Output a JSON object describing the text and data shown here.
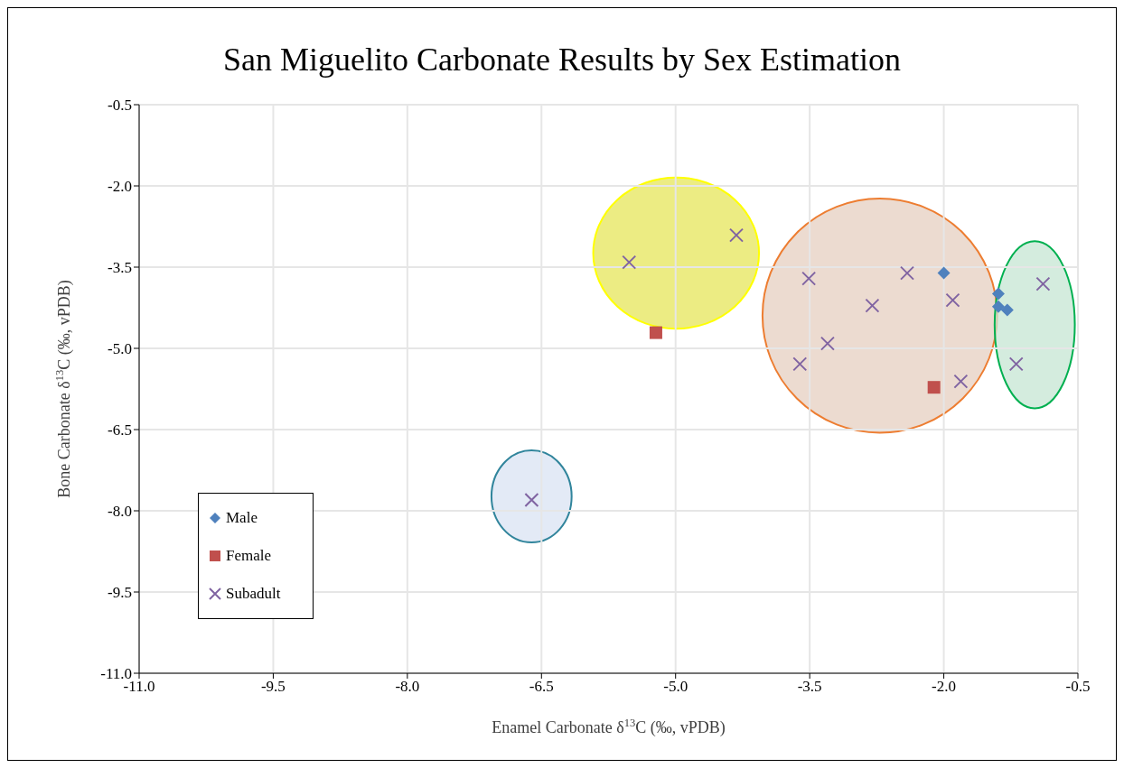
{
  "chart_data": {
    "type": "scatter",
    "title": "San Miguelito Carbonate Results by Sex Estimation",
    "xlabel": "Enamel Carbonate δ$^{13}$C (‰, vPDB)",
    "ylabel": "Bone Carbonate δ$^{13}$C (‰, vPDB)",
    "xlim": [
      -11,
      -0.5
    ],
    "xticks": [
      {
        "value": -11,
        "label": "-11.0"
      },
      {
        "value": -9.5,
        "label": "-9.5"
      },
      {
        "value": -8,
        "label": "-8.0"
      },
      {
        "value": -6.5,
        "label": "-6.5"
      },
      {
        "value": -5,
        "label": "-5.0"
      },
      {
        "value": -3.5,
        "label": "-3.5"
      },
      {
        "value": -2,
        "label": "-2.0"
      },
      {
        "value": -0.5,
        "label": "-0.5"
      }
    ],
    "ylim": [
      -11,
      -0.5
    ],
    "yticks": [
      {
        "value": -11,
        "label": "-11.0"
      },
      {
        "value": -9.5,
        "label": "-9.5"
      },
      {
        "value": -8,
        "label": "-8.0"
      },
      {
        "value": -6.5,
        "label": "-6.5"
      },
      {
        "value": -5,
        "label": "-5.0"
      },
      {
        "value": -3.5,
        "label": "-3.5"
      },
      {
        "value": -2,
        "label": "-2.0"
      },
      {
        "value": -0.5,
        "label": "-0.5"
      }
    ],
    "grid": true,
    "legend": "bottom left",
    "series": [
      {
        "name": "Male",
        "color": "#4f81bd",
        "marker": "diamond",
        "x": [
          -2.0,
          -1.39,
          -1.39,
          -1.29
        ],
        "values": [
          -3.61,
          -3.99,
          -4.23,
          -4.29
        ]
      },
      {
        "name": "Female",
        "color": "#c0504d",
        "marker": "square",
        "x": [
          -5.22,
          -2.11
        ],
        "values": [
          -4.71,
          -5.72
        ]
      },
      {
        "name": "Subadult",
        "color": "#8064a2",
        "marker": "cross",
        "x": [
          -5.52,
          -4.32,
          -3.51,
          -2.41,
          -2.8,
          -1.9,
          -0.89,
          -3.3,
          -3.61,
          -1.19,
          -1.81,
          -6.61
        ],
        "values": [
          -3.41,
          -2.91,
          -3.71,
          -3.61,
          -4.21,
          -4.11,
          -3.81,
          -4.91,
          -5.29,
          -5.29,
          -5.61,
          -7.8
        ]
      }
    ]
  }
}
